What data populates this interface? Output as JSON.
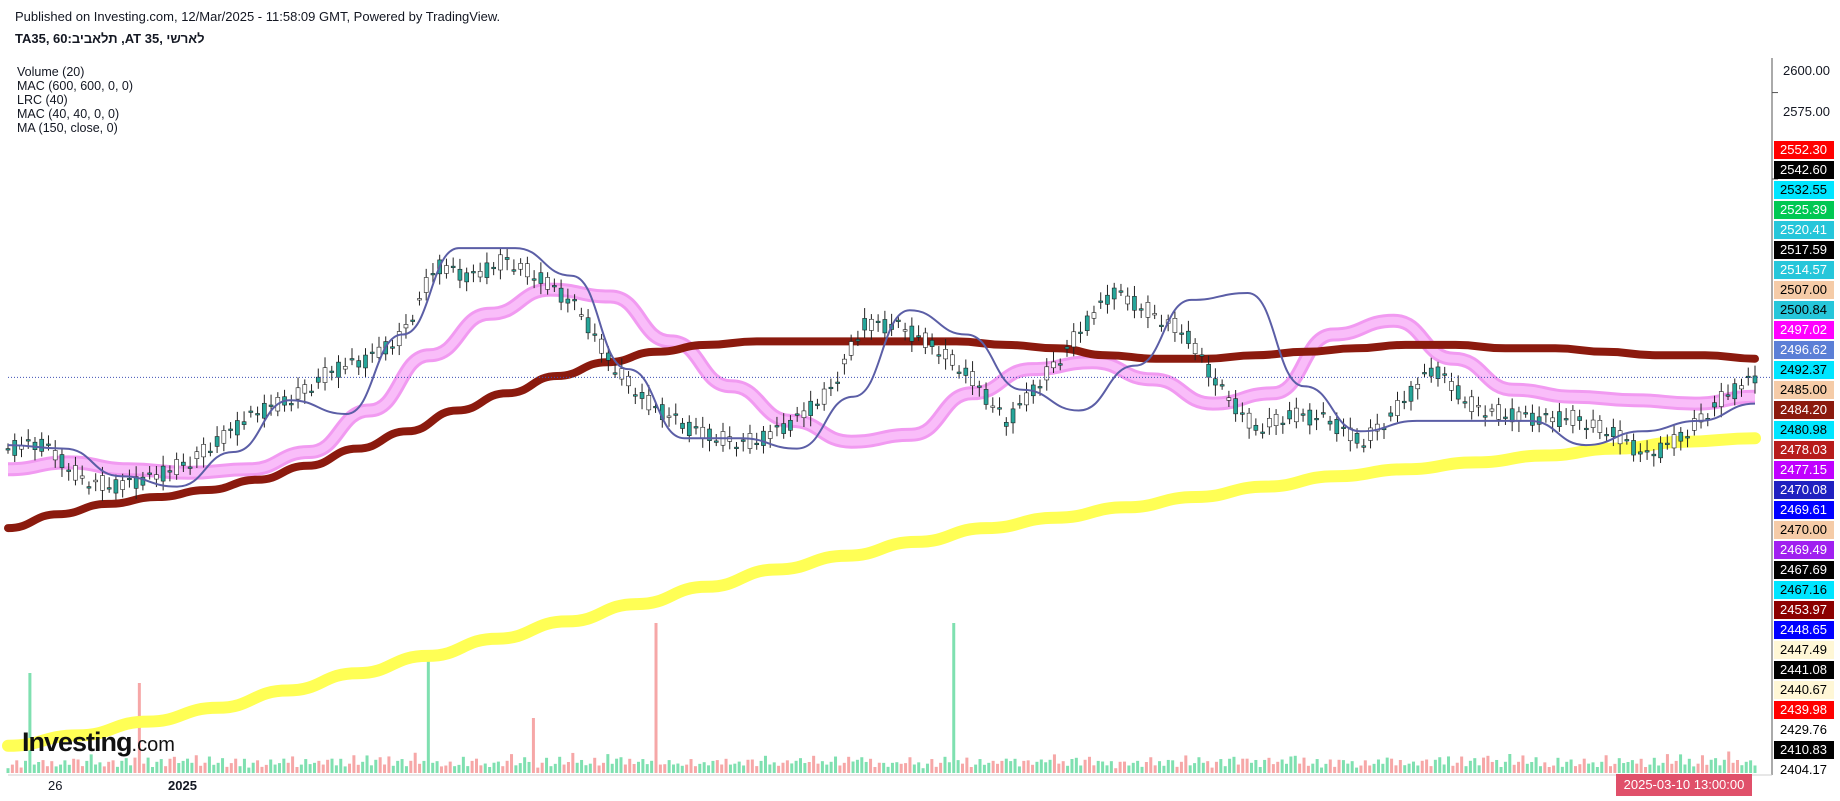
{
  "header": {
    "published": "Published on Investing.com, 12/Mar/2025 - 11:58:09 GMT, Powered by TradingView.",
    "symbol": "TA35, 60:תלאביב ,AT 35, לארשי"
  },
  "indicators": [
    "Volume (20)",
    "MAC (600, 600, 0, 0)",
    "LRC (40)",
    "MAC (40, 40, 0, 0)",
    "MA (150, close, 0)"
  ],
  "watermark": {
    "brand": "Investing",
    "suffix": ".com"
  },
  "cursor_date": "2025-03-10 13:00:00",
  "colors": {
    "up": "#26a69a",
    "down": "#ef5350",
    "ma150": "#8b1a0e",
    "mac600": "#ffff55",
    "lrc": "#ee88ee",
    "mac40": "#5b5ea6",
    "vol_up": "#7fe0b0",
    "vol_down": "#f6a7a7"
  },
  "chart_data": {
    "type": "line",
    "ylim": [
      2404,
      2610
    ],
    "y_ticks": [
      "2600.00",
      "2575.00"
    ],
    "x_tick_labels": [
      "26",
      "2025"
    ],
    "price_labels": [
      {
        "text": "2552.30",
        "bg": "#ff0000",
        "fg": "#ffffff"
      },
      {
        "text": "2542.60",
        "bg": "#000000",
        "fg": "#ffffff"
      },
      {
        "text": "2532.55",
        "bg": "#00e5ff",
        "fg": "#000000"
      },
      {
        "text": "2525.39",
        "bg": "#00c853",
        "fg": "#ffffff"
      },
      {
        "text": "2520.41",
        "bg": "#26c6da",
        "fg": "#ffffff"
      },
      {
        "text": "2517.59",
        "bg": "#000000",
        "fg": "#ffffff"
      },
      {
        "text": "2514.57",
        "bg": "#26c6da",
        "fg": "#ffffff"
      },
      {
        "text": "2507.00",
        "bg": "#f5cba7",
        "fg": "#000000"
      },
      {
        "text": "2500.84",
        "bg": "#26c6da",
        "fg": "#000000"
      },
      {
        "text": "2497.02",
        "bg": "#ff00ff",
        "fg": "#ffffff"
      },
      {
        "text": "2496.62",
        "bg": "#5b7fd6",
        "fg": "#ffffff"
      },
      {
        "text": "2492.37",
        "bg": "#00e5ff",
        "fg": "#000000"
      },
      {
        "text": "2485.00",
        "bg": "#f5cba7",
        "fg": "#000000"
      },
      {
        "text": "2484.20",
        "bg": "#8b1a0e",
        "fg": "#ffffff"
      },
      {
        "text": "2480.98",
        "bg": "#00e5ff",
        "fg": "#000000"
      },
      {
        "text": "2478.03",
        "bg": "#b71c1c",
        "fg": "#ffffff"
      },
      {
        "text": "2477.15",
        "bg": "#c000ff",
        "fg": "#ffffff"
      },
      {
        "text": "2470.08",
        "bg": "#2020c0",
        "fg": "#ffffff"
      },
      {
        "text": "2469.61",
        "bg": "#0000ff",
        "fg": "#ffffff"
      },
      {
        "text": "2470.00",
        "bg": "#f5cba7",
        "fg": "#000000"
      },
      {
        "text": "2469.49",
        "bg": "#a020f0",
        "fg": "#ffffff"
      },
      {
        "text": "2467.69",
        "bg": "#000000",
        "fg": "#ffffff"
      },
      {
        "text": "2467.16",
        "bg": "#00e5ff",
        "fg": "#000000"
      },
      {
        "text": "2453.97",
        "bg": "#8b0000",
        "fg": "#ffffff"
      },
      {
        "text": "2448.65",
        "bg": "#0000ff",
        "fg": "#ffffff"
      },
      {
        "text": "2447.49",
        "bg": "#fff7d6",
        "fg": "#000000"
      },
      {
        "text": "2441.08",
        "bg": "#000000",
        "fg": "#ffffff"
      },
      {
        "text": "2440.67",
        "bg": "#fff7d6",
        "fg": "#000000"
      },
      {
        "text": "2439.98",
        "bg": "#ff0000",
        "fg": "#ffffff"
      },
      {
        "text": "2429.76",
        "bg": "#ffffff",
        "fg": "#000000"
      },
      {
        "text": "2410.83",
        "bg": "#000000",
        "fg": "#ffffff"
      },
      {
        "text": "2404.17",
        "bg": "#ffffff",
        "fg": "#000000"
      }
    ],
    "last_price": 2517.59,
    "series": [
      {
        "name": "MA (150, close, 0)",
        "values": [
          2474,
          2478,
          2481,
          2483,
          2485,
          2488,
          2492,
          2497,
          2502,
          2508,
          2513,
          2518,
          2522,
          2525,
          2527,
          2528,
          2528,
          2528,
          2528,
          2528,
          2527,
          2526,
          2524,
          2523,
          2523,
          2524,
          2525,
          2526,
          2527,
          2527,
          2526,
          2526,
          2525,
          2524,
          2524,
          2523
        ]
      },
      {
        "name": "MAC (600, 600, 0, 0)",
        "values": [
          2411,
          2414,
          2418,
          2422,
          2427,
          2432,
          2437,
          2442,
          2447,
          2452,
          2457,
          2462,
          2466,
          2470,
          2474,
          2477,
          2480,
          2483,
          2486,
          2489,
          2491,
          2493,
          2495,
          2497,
          2499,
          2500
        ]
      },
      {
        "name": "LRC (40)",
        "values": [
          2491,
          2493,
          2491,
          2490,
          2491,
          2496,
          2508,
          2524,
          2536,
          2543,
          2541,
          2528,
          2515,
          2505,
          2499,
          2501,
          2513,
          2520,
          2522,
          2517,
          2510,
          2513,
          2530,
          2534,
          2523,
          2514,
          2512,
          2511,
          2510,
          2512
        ]
      },
      {
        "name": "MAC (40, 40, 0, 0)",
        "values": [
          2498,
          2497,
          2489,
          2486,
          2496,
          2511,
          2507,
          2530,
          2555,
          2555,
          2547,
          2520,
          2500,
          2500,
          2497,
          2512,
          2537,
          2530,
          2514,
          2508,
          2521,
          2540,
          2542,
          2515,
          2502,
          2505,
          2505,
          2505,
          2498,
          2502,
          2505,
          2510
        ]
      },
      {
        "name": "Price",
        "values": [
          2497,
          2498,
          2489,
          2486,
          2488,
          2493,
          2500,
          2507,
          2512,
          2519,
          2522,
          2529,
          2550,
          2546,
          2552,
          2546,
          2537,
          2521,
          2510,
          2503,
          2500,
          2499,
          2504,
          2513,
          2533,
          2532,
          2527,
          2518,
          2504,
          2517,
          2530,
          2542,
          2537,
          2531,
          2514,
          2503,
          2507,
          2505,
          2499,
          2509,
          2520,
          2510,
          2507,
          2505,
          2506,
          2502,
          2494,
          2501,
          2511,
          2517
        ]
      }
    ],
    "volume": [
      8,
      9,
      10,
      8,
      12,
      9,
      11,
      10,
      9,
      8,
      10,
      11,
      9,
      10,
      12,
      14,
      10,
      9,
      11,
      13,
      10,
      9,
      11,
      12,
      10,
      9,
      12,
      11,
      10,
      14,
      12,
      11,
      13,
      10,
      12,
      11,
      10,
      14,
      12,
      13,
      11,
      10,
      12,
      15,
      12,
      11,
      13,
      12,
      10,
      11
    ]
  }
}
